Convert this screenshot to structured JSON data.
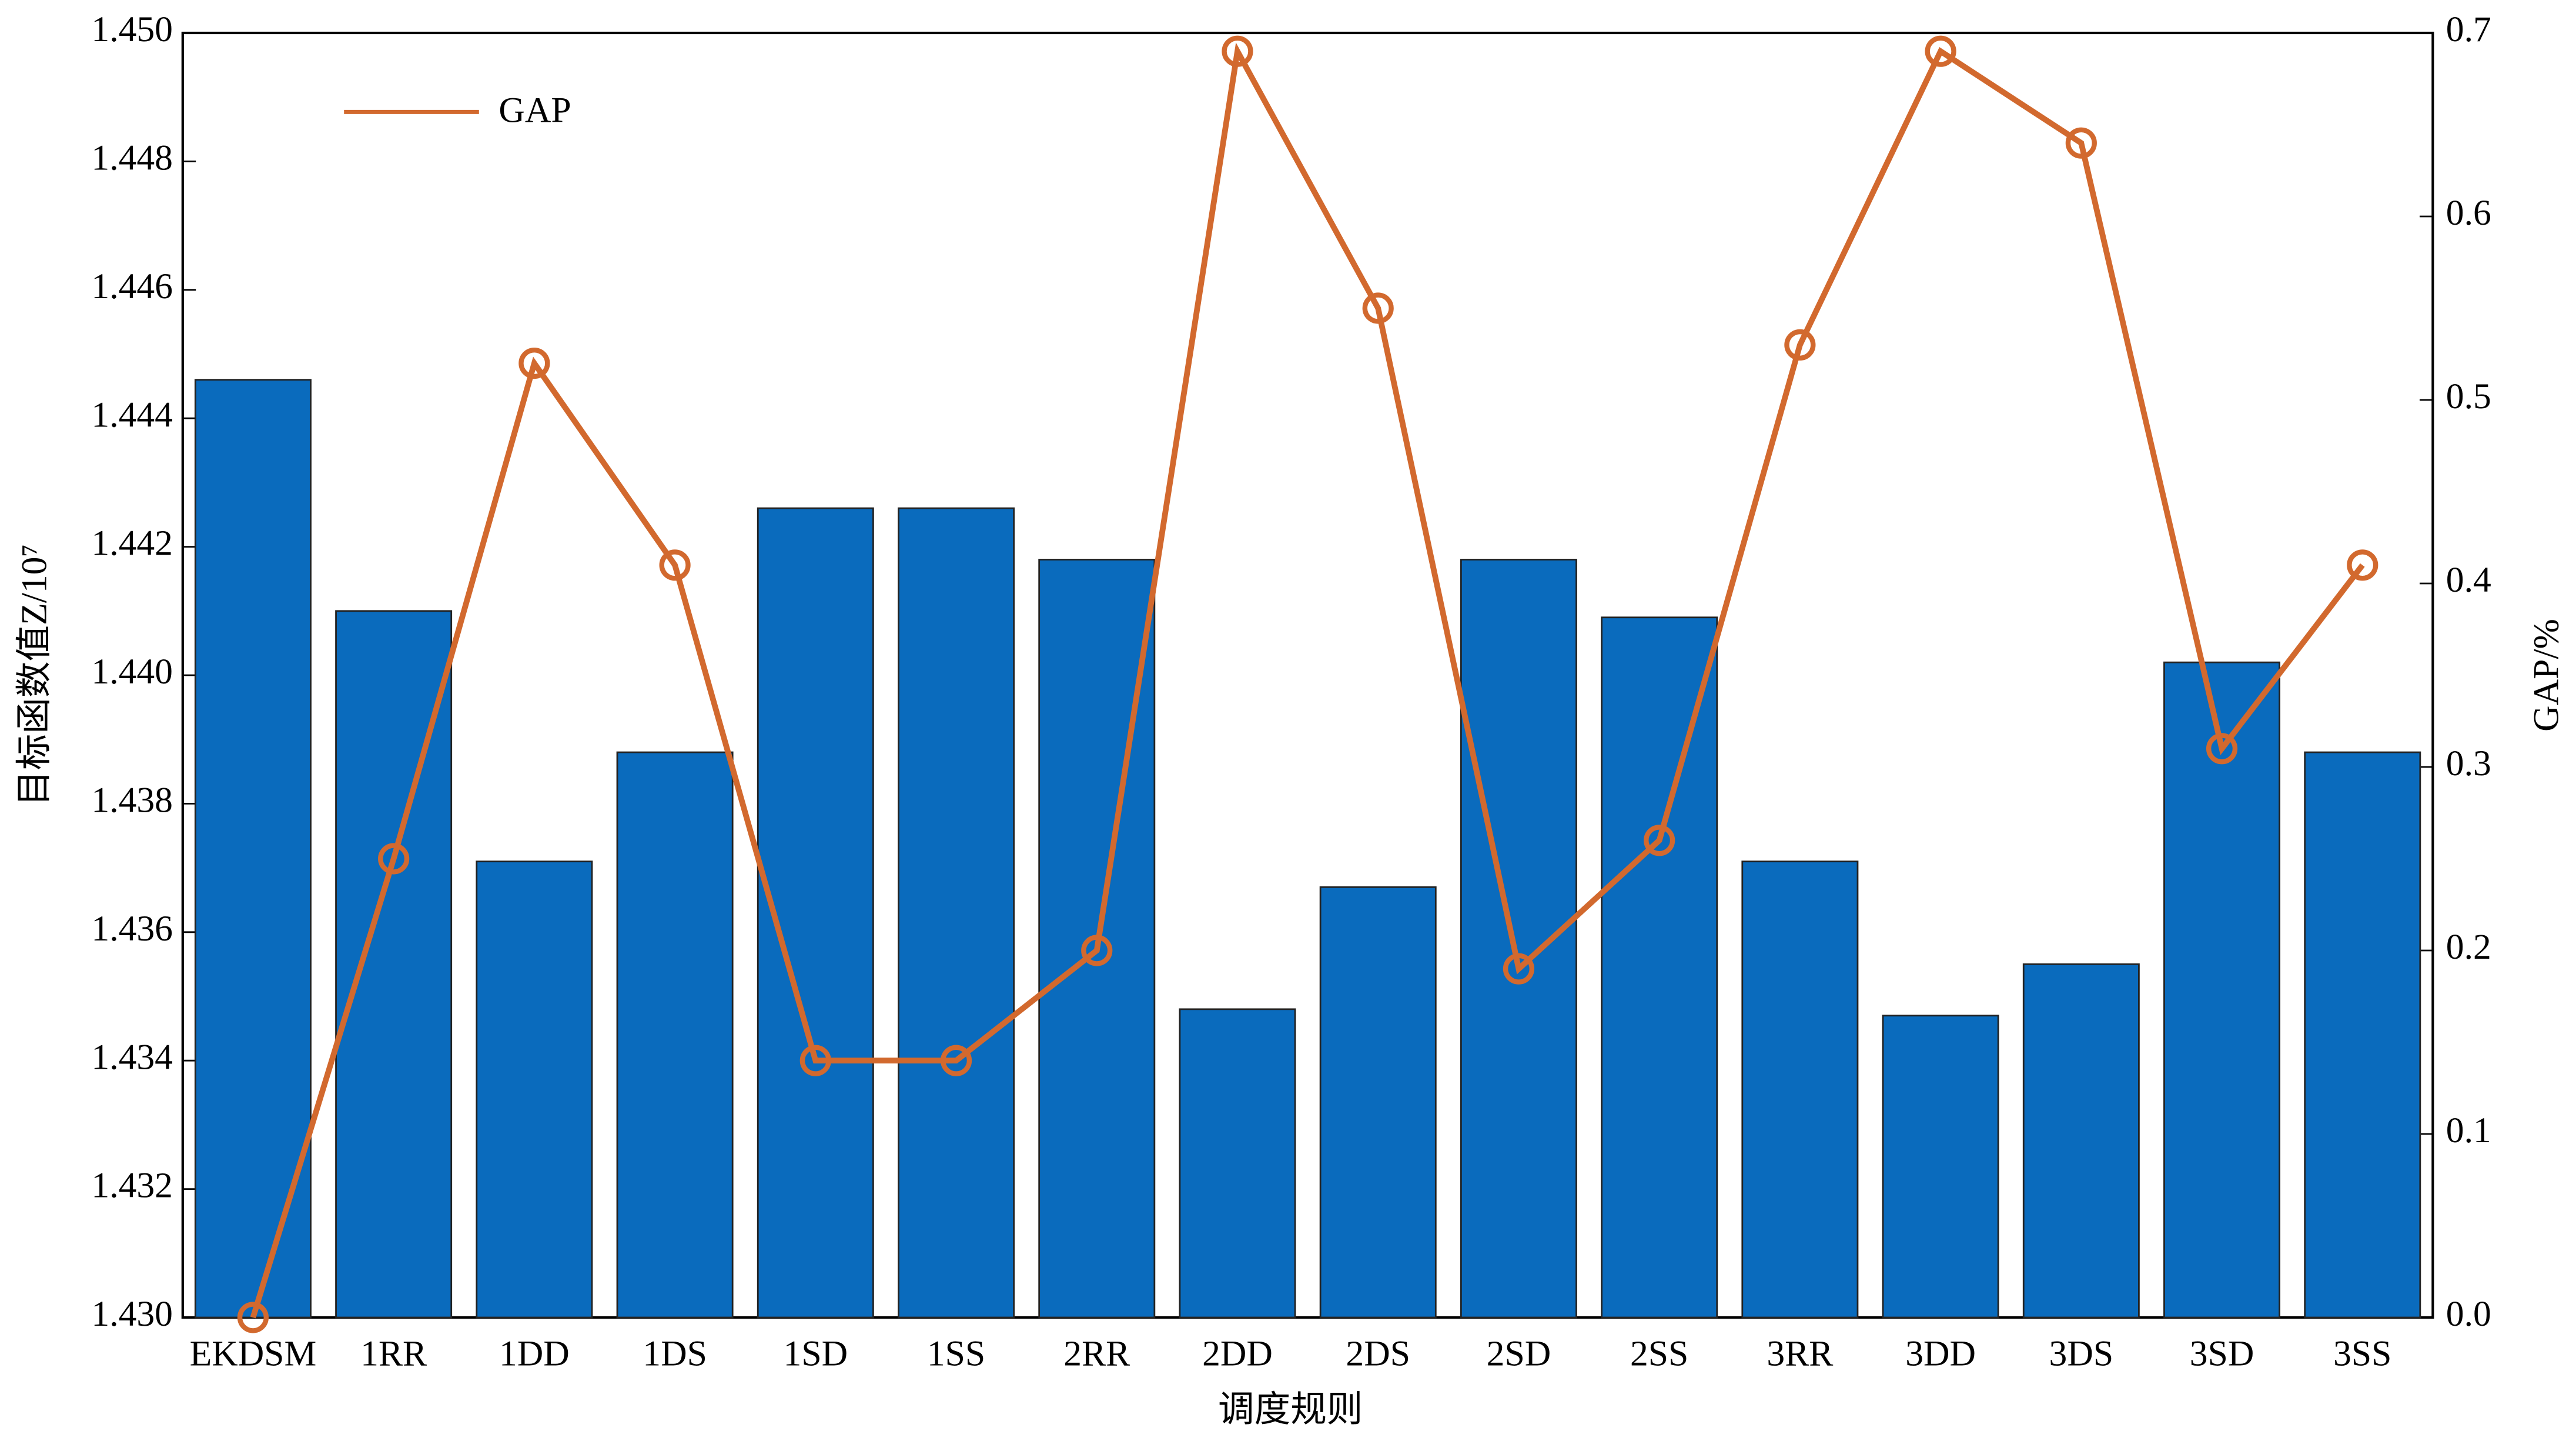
{
  "chart_data": {
    "type": "bar-line",
    "xlabel": "调度规则",
    "ylabel": "目标函数值Z/10⁷",
    "y2label": "GAP/%",
    "categories": [
      "EKDSM",
      "1RR",
      "1DD",
      "1DS",
      "1SD",
      "1SS",
      "2RR",
      "2DD",
      "2DS",
      "2SD",
      "2SS",
      "3RR",
      "3DD",
      "3DS",
      "3SD",
      "3SS"
    ],
    "series": [
      {
        "type": "bar",
        "color": "#0a6bbd",
        "values": [
          1.4446,
          1.441,
          1.4371,
          1.4388,
          1.4426,
          1.4426,
          1.4418,
          1.4348,
          1.4367,
          1.4418,
          1.4409,
          1.4371,
          1.4347,
          1.4355,
          1.4402,
          1.4388
        ]
      },
      {
        "type": "line",
        "name": "GAP",
        "color": "#d2692e",
        "axis": "y2",
        "values": [
          0,
          0.25,
          0.52,
          0.41,
          0.14,
          0.14,
          0.2,
          0.69,
          0.55,
          0.19,
          0.26,
          0.53,
          0.69,
          0.64,
          0.31,
          0.41
        ]
      }
    ],
    "ylim": [
      1.43,
      1.45
    ],
    "yticks": [
      {
        "value": 1.43,
        "label": "1.430"
      },
      {
        "value": 1.432,
        "label": "1.432"
      },
      {
        "value": 1.434,
        "label": "1.434"
      },
      {
        "value": 1.436,
        "label": "1.436"
      },
      {
        "value": 1.438,
        "label": "1.438"
      },
      {
        "value": 1.44,
        "label": "1.440"
      },
      {
        "value": 1.442,
        "label": "1.442"
      },
      {
        "value": 1.444,
        "label": "1.444"
      },
      {
        "value": 1.446,
        "label": "1.446"
      },
      {
        "value": 1.448,
        "label": "1.448"
      },
      {
        "value": 1.45,
        "label": "1.450"
      }
    ],
    "y2lim": [
      0,
      0.7
    ],
    "y2ticks": [
      {
        "value": 0,
        "label": "0.0"
      },
      0.1,
      0.2,
      0.3,
      0.4,
      0.5,
      0.6,
      0.7
    ],
    "legend": "upper left"
  }
}
